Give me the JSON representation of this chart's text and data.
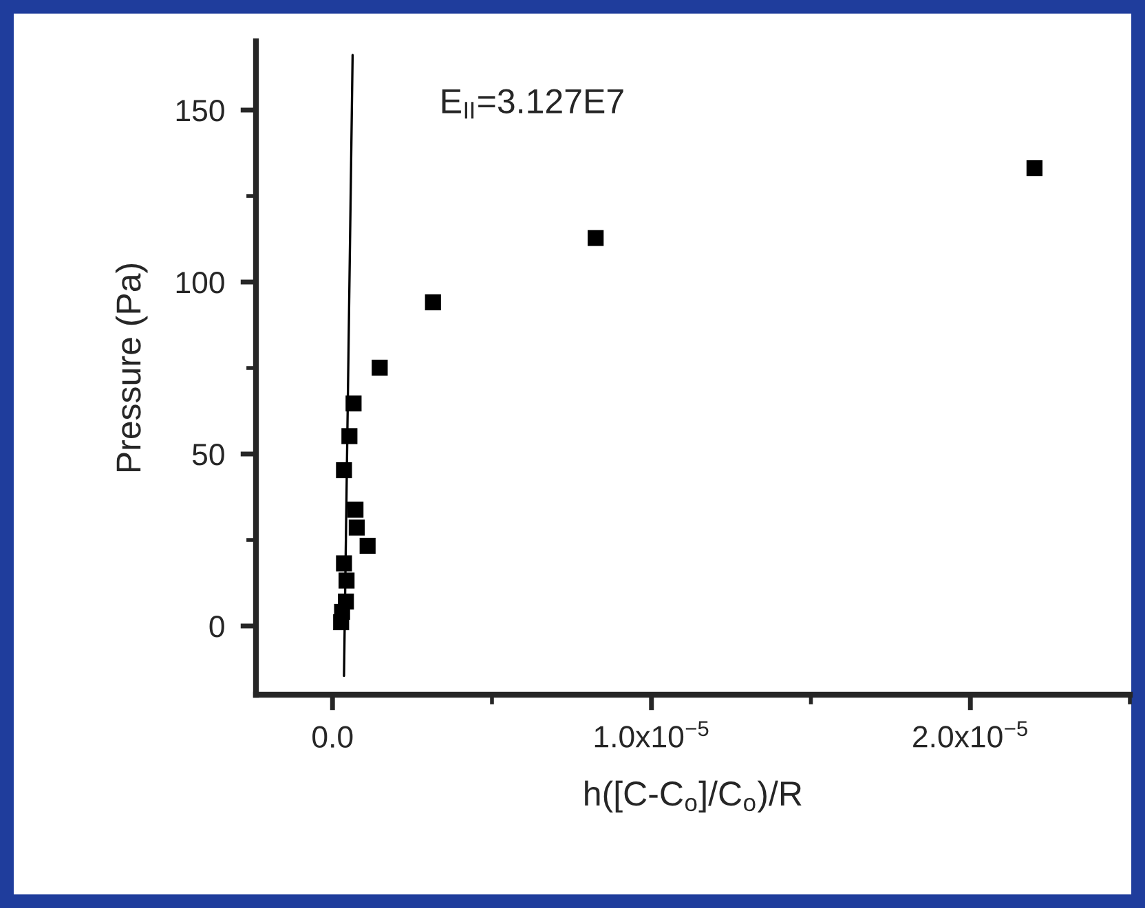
{
  "chart_data": {
    "type": "scatter",
    "xlabel": "h([C-C$_{o}$]/C$_{o}$)/R",
    "ylabel": "Pressure (Pa)",
    "annotations": [
      "E$_{II}$=3.127E7"
    ],
    "xlim": [
      -2.4e-06,
      2.5e-05
    ],
    "ylim": [
      -20,
      170
    ],
    "xticks": [
      {
        "value": 0,
        "label": "0.0"
      },
      {
        "value": 1e-05,
        "label": "1.0x10$^{−5}$"
      },
      {
        "value": 2e-05,
        "label": "2.0x10$^{−5}$"
      }
    ],
    "yticks": [
      0,
      50,
      100,
      150
    ],
    "grid": false,
    "series": [
      {
        "marker": "square",
        "color": "#000000",
        "x": [
          2.201e-05,
          8.25e-06,
          3.15e-06,
          1.48e-06,
          6.6e-07,
          5.3e-07,
          3.6e-07,
          7.2e-07,
          7.6e-07,
          1.1e-06,
          3.6e-07,
          4.4e-07,
          4.2e-07,
          3e-07,
          2.7e-07
        ],
        "values": [
          133.1,
          112.8,
          94.1,
          75.1,
          64.7,
          55.2,
          45.3,
          33.8,
          28.6,
          23.3,
          18.2,
          13.2,
          7.1,
          4.1,
          1.1
        ]
      },
      {
        "type": "line",
        "color": "#000000",
        "x": [
          3.6e-07,
          6.3e-07
        ],
        "values": [
          -14.5,
          166
        ]
      }
    ]
  }
}
